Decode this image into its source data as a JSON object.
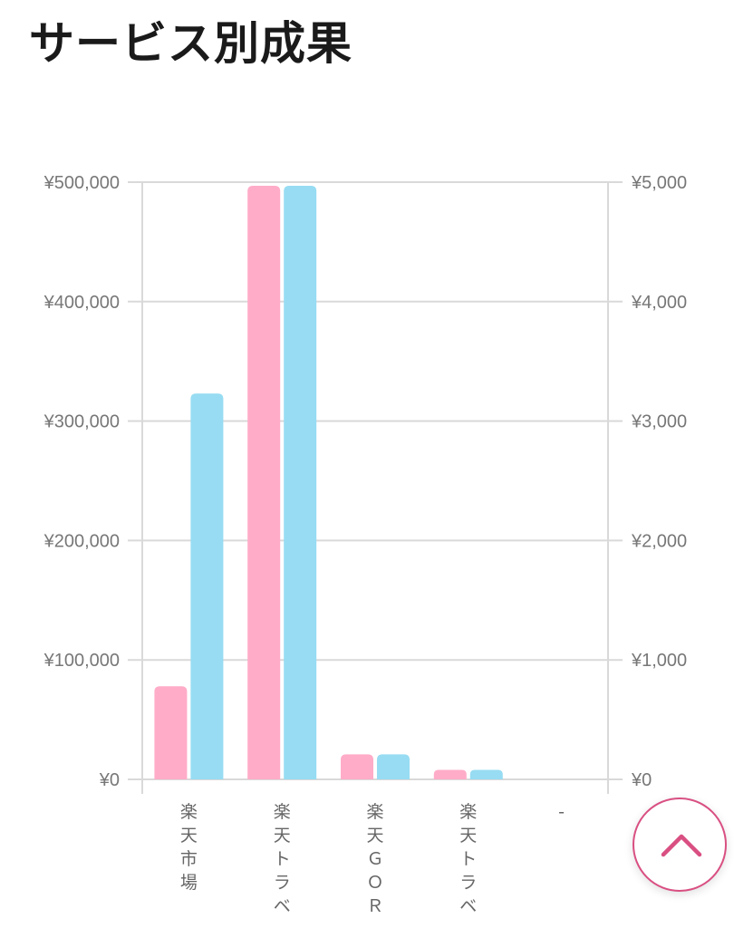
{
  "page": {
    "title": "サービス別成果"
  },
  "chart_data": {
    "type": "bar",
    "title": "",
    "categories": [
      "楽天市場",
      "楽天トラベ…",
      "楽天ＧＯＲ…",
      "楽天トラベ…",
      "-"
    ],
    "series": [
      {
        "color": "#ffacc8",
        "axis": "left",
        "values": [
          78000,
          497000,
          21000,
          8000,
          0
        ]
      },
      {
        "color": "#97dcf2",
        "axis": "right",
        "values": [
          3230,
          4970,
          210,
          80,
          0
        ]
      }
    ],
    "left_axis": {
      "ticks": [
        "¥0",
        "¥100,000",
        "¥200,000",
        "¥300,000",
        "¥400,000",
        "¥500,000"
      ],
      "ylim": [
        0,
        500000
      ]
    },
    "right_axis": {
      "ticks": [
        "¥0",
        "¥1,000",
        "¥2,000",
        "¥3,000",
        "¥4,000",
        "¥5,000"
      ],
      "ylim": [
        0,
        5000
      ]
    },
    "grid": true,
    "legend": "none"
  },
  "scroll_top": {
    "icon": "chevron-up-icon",
    "color": "#d94f82"
  }
}
